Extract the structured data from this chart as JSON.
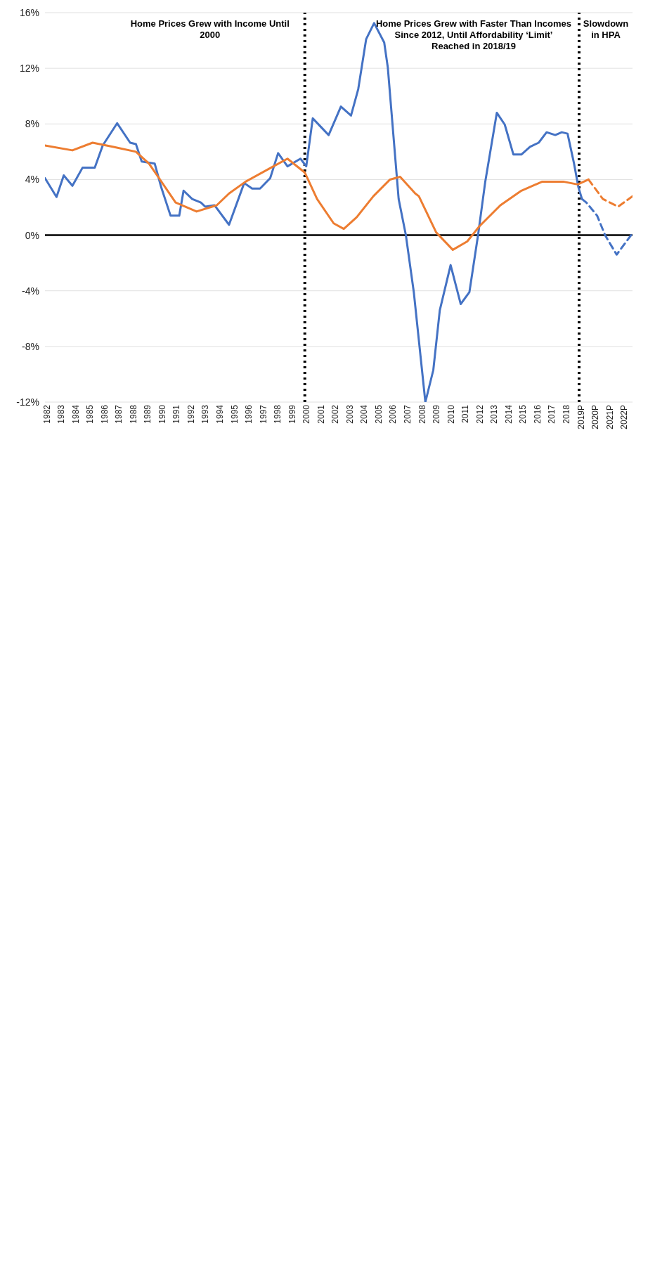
{
  "chart_data": {
    "type": "line",
    "xlim": [
      1982,
      2022.7
    ],
    "xticks": [
      1982,
      1983,
      1984,
      1985,
      1986,
      1987,
      1988,
      1989,
      1990,
      1991,
      1992,
      1993,
      1994,
      1995,
      1996,
      1997,
      1998,
      1999,
      2000,
      2001,
      2002,
      2003,
      2004,
      2005,
      2006,
      2007,
      2008,
      2009,
      2010,
      2011,
      2012,
      2013,
      2014,
      2015,
      2016,
      2017,
      2018,
      {
        "value": 2019,
        "label": "2019P"
      },
      {
        "value": 2020,
        "label": "2020P"
      },
      {
        "value": 2021,
        "label": "2021P"
      },
      {
        "value": 2022,
        "label": "2022P"
      }
    ],
    "ylim": [
      -12,
      16
    ],
    "yticks": [
      {
        "value": -12,
        "label": "-12%"
      },
      {
        "value": -8,
        "label": "-8%"
      },
      {
        "value": -4,
        "label": "-4%"
      },
      {
        "value": 0,
        "label": "0%"
      },
      {
        "value": 4,
        "label": "4%"
      },
      {
        "value": 8,
        "label": "8%"
      },
      {
        "value": 12,
        "label": "12%"
      },
      {
        "value": 16,
        "label": "16%"
      }
    ],
    "grid": "y",
    "marker": "none",
    "series": [
      {
        "color": "#4472c4",
        "line_style": "solid",
        "x": [
          1982,
          1982.8,
          1983.3,
          1983.9,
          1984.6,
          1985.45,
          1986,
          1987,
          1987.9,
          1988.3,
          1988.7,
          1989.6,
          1990.05,
          1990.7,
          1991.3,
          1991.6,
          1992.2,
          1992.8,
          1993.1,
          1993.75,
          1994.75,
          1995.8,
          1996.35,
          1996.9,
          1997.6,
          1998.15,
          1998.8,
          1999.7,
          2000.1,
          2000.55,
          2001.65,
          2002.5,
          2003.2,
          2003.7,
          2004.25,
          2004.8,
          2005.5,
          2005.75,
          2006.5,
          2007,
          2007.55,
          2008.35,
          2008.9,
          2009.35,
          2010.1,
          2010.8,
          2011.4,
          2012,
          2012.5,
          2013.3,
          2013.85,
          2014.45,
          2015,
          2015.6,
          2016.2,
          2016.75,
          2017.35,
          2017.8,
          2018.2,
          2018.65,
          2018.95,
          2019.2
        ],
        "values": [
          4.1,
          2.75,
          4.3,
          3.55,
          4.85,
          4.85,
          6.45,
          8.05,
          6.65,
          6.55,
          5.3,
          5.15,
          3.45,
          1.4,
          1.4,
          3.2,
          2.6,
          2.35,
          2.05,
          2.15,
          0.75,
          3.75,
          3.35,
          3.35,
          4.1,
          5.9,
          4.95,
          5.5,
          4.95,
          8.4,
          7.2,
          9.25,
          8.6,
          10.5,
          14.1,
          15.25,
          13.85,
          12.05,
          2.6,
          0,
          -4.1,
          -12,
          -9.7,
          -5.4,
          -2.15,
          -4.95,
          -4.1,
          0,
          3.85,
          8.8,
          7.95,
          5.8,
          5.8,
          6.35,
          6.65,
          7.4,
          7.2,
          7.4,
          7.3,
          5.15,
          3.45,
          2.6
        ]
      },
      {
        "color": "#4472c4",
        "line_style": "dashed",
        "x": [
          2019.2,
          2019.5,
          2020.25,
          2020.8,
          2021.6,
          2022.6
        ],
        "values": [
          2.6,
          2.35,
          1.4,
          0,
          -1.4,
          0
        ]
      },
      {
        "color": "#ed7d31",
        "line_style": "solid",
        "x": [
          1982,
          1983.9,
          1985.3,
          1986.75,
          1988.3,
          1989.2,
          1989.9,
          1991.05,
          1992.5,
          1993.9,
          1994.75,
          1995.9,
          1997.65,
          1998.8,
          2000,
          2000.85,
          2002,
          2002.7,
          2003.6,
          2004.75,
          2005.9,
          2006.6,
          2007.65,
          2007.9,
          2009.1,
          2010.25,
          2011.25,
          2012.1,
          2013.55,
          2015,
          2016.45,
          2017.9,
          2018.9,
          2019.65
        ],
        "values": [
          6.45,
          6.1,
          6.65,
          6.35,
          6,
          5.15,
          4.1,
          2.35,
          1.7,
          2.15,
          3,
          3.85,
          4.85,
          5.5,
          4.5,
          2.6,
          0.85,
          0.45,
          1.3,
          2.8,
          4,
          4.2,
          3,
          2.8,
          0.2,
          -1.05,
          -0.45,
          0.65,
          2.15,
          3.2,
          3.85,
          3.85,
          3.65,
          4
        ]
      },
      {
        "color": "#ed7d31",
        "line_style": "dashed",
        "x": [
          2019.65,
          2020.65,
          2021.7,
          2022.7
        ],
        "values": [
          4,
          2.6,
          2.05,
          2.8
        ]
      }
    ],
    "ref_lines": [
      {
        "axis": "y",
        "value": 0,
        "color": "#000000",
        "line_style": "solid"
      },
      {
        "axis": "x",
        "value": 2000,
        "color": "#000000",
        "line_style": "dotted"
      },
      {
        "axis": "x",
        "value": 2019,
        "color": "#000000",
        "line_style": "dotted"
      }
    ],
    "annotations": [
      "Home Prices Grew with Income Until 2000",
      "Home Prices Grew with Faster Than Incomes Since 2012, Until Affordability ‘Limit’ Reached in 2018/19",
      "Slowdown in HPA"
    ]
  }
}
